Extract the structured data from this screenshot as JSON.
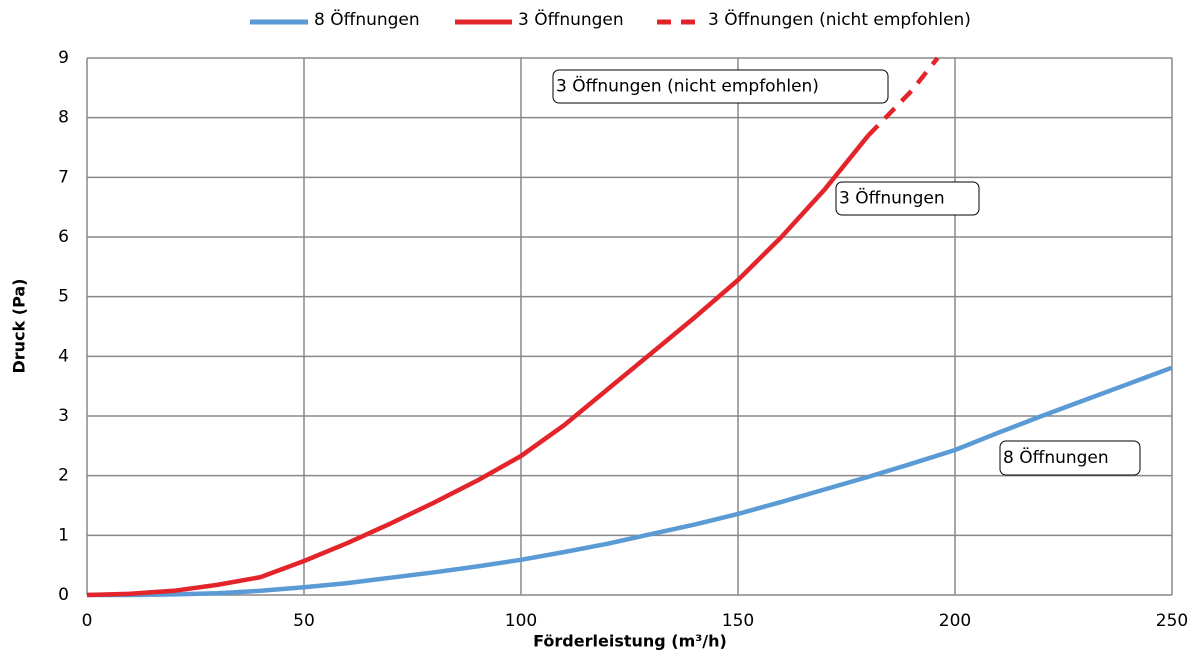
{
  "chart_data": {
    "type": "line",
    "xlabel": "Förderleistung (m³/h)",
    "ylabel": "Druck (Pa)",
    "xlim": [
      0,
      250
    ],
    "xticks": [
      0,
      50,
      100,
      150,
      200,
      250
    ],
    "ylim": [
      0,
      9
    ],
    "yticks": [
      0,
      1,
      2,
      3,
      4,
      5,
      6,
      7,
      8,
      9
    ],
    "grid": true,
    "legend": "top",
    "series": [
      {
        "name": "8 Öffnungen",
        "color": "#5b9bd5",
        "dashed": false,
        "x": [
          0,
          10,
          20,
          30,
          40,
          50,
          60,
          70,
          80,
          90,
          100,
          110,
          120,
          130,
          140,
          150,
          160,
          170,
          180,
          190,
          200,
          210,
          220,
          230,
          240,
          250
        ],
        "values": [
          0,
          0,
          0.01,
          0.03,
          0.07,
          0.13,
          0.2,
          0.29,
          0.38,
          0.48,
          0.59,
          0.72,
          0.86,
          1.02,
          1.18,
          1.36,
          1.56,
          1.77,
          1.98,
          2.2,
          2.43,
          2.72,
          3.0,
          3.27,
          3.54,
          3.81
        ]
      },
      {
        "name": "3 Öffnungen",
        "color": "#e3242b",
        "dashed": false,
        "x": [
          0,
          10,
          20,
          30,
          40,
          50,
          60,
          70,
          80,
          90,
          100,
          110,
          120,
          130,
          140,
          150,
          160,
          170,
          180
        ],
        "values": [
          0,
          0.02,
          0.07,
          0.17,
          0.3,
          0.57,
          0.87,
          1.2,
          1.55,
          1.92,
          2.33,
          2.85,
          3.45,
          4.05,
          4.65,
          5.28,
          6.0,
          6.8,
          7.7
        ]
      },
      {
        "name": "3 Öffnungen (nicht empfohlen)",
        "color": "#e3242b",
        "dashed": true,
        "x": [
          180,
          190,
          196
        ],
        "values": [
          7.7,
          8.45,
          9.0
        ]
      }
    ],
    "annotations": [
      "3 Öffnungen (nicht empfohlen)",
      "3 Öffnungen",
      "8 Öffnungen"
    ]
  }
}
